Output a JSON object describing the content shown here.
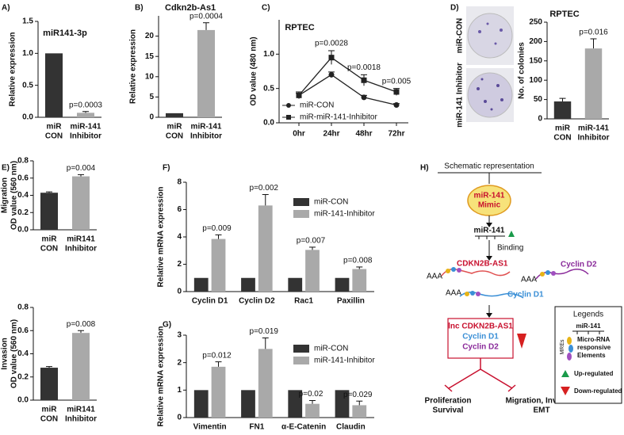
{
  "chart_data": [
    {
      "type": "bar",
      "panel_label": "A)",
      "title": "miR141-3p",
      "ylabel": "Relative expression",
      "categories": [
        [
          "miR",
          "CON"
        ],
        [
          "miR-141",
          "Inhibitor"
        ]
      ],
      "values": [
        1.0,
        0.07
      ],
      "errors": [
        0,
        0.02
      ],
      "colors": [
        "#333333",
        "#a9a9a9"
      ],
      "pvalues": [
        null,
        "p=0.0003"
      ],
      "ylim": [
        0,
        1.5
      ],
      "yticks": [
        {
          "value": 0,
          "label": "0.0"
        },
        {
          "value": 0.5,
          "label": "0.5"
        },
        {
          "value": 1.0,
          "label": "1.0"
        },
        {
          "value": 1.5,
          "label": "1.5"
        }
      ]
    },
    {
      "type": "bar",
      "panel_label": "B)",
      "title": "Cdkn2b-As1",
      "ylabel": "Relative expression",
      "categories": [
        [
          "miR",
          "CON"
        ],
        [
          "miR-141",
          "Inhibitor"
        ]
      ],
      "values": [
        1,
        21.5
      ],
      "errors": [
        0,
        1.8
      ],
      "colors": [
        "#333333",
        "#a9a9a9"
      ],
      "pvalues": [
        null,
        "p=0.0004"
      ],
      "ylim": [
        0,
        25
      ],
      "yticks": [
        0,
        5,
        10,
        15,
        20
      ]
    },
    {
      "type": "line",
      "panel_label": "C)",
      "title": "RPTEC",
      "ylabel": "OD value (480 nm)",
      "categories": [
        "0hr",
        "24hr",
        "48hr",
        "72hr"
      ],
      "series": [
        {
          "name": "miR-CON",
          "color": "#222222",
          "marker": "circle",
          "values": [
            0.4,
            0.7,
            0.37,
            0.26
          ],
          "errors": [
            0.03,
            0.04,
            0.03,
            0.02
          ]
        },
        {
          "name": "miR-miR-141-Inhibitor",
          "color": "#222222",
          "marker": "square",
          "values": [
            0.4,
            0.95,
            0.62,
            0.45
          ],
          "errors": [
            0.05,
            0.1,
            0.08,
            0.05
          ]
        }
      ],
      "pvalues": [
        null,
        "p=0.0028",
        "p=0.0018",
        "p=0.005"
      ],
      "ylim": [
        0,
        1.5
      ],
      "yticks": [
        {
          "value": 0,
          "label": "0.0"
        },
        {
          "value": 0.5,
          "label": "0.5"
        },
        {
          "value": 1.0,
          "label": "1.0"
        }
      ]
    },
    {
      "type": "bar",
      "panel_label": "D)",
      "title": "RPTEC",
      "ylabel": "No. of colonies",
      "image_labels": [
        "miR-CON",
        "miR-141 Inhibitor"
      ],
      "categories": [
        [
          "miR",
          "CON"
        ],
        [
          "miR-141",
          "Inhibitor"
        ]
      ],
      "values": [
        45,
        182
      ],
      "errors": [
        8,
        25
      ],
      "colors": [
        "#333333",
        "#a9a9a9"
      ],
      "pvalues": [
        null,
        "p=0.016"
      ],
      "ylim": [
        0,
        250
      ],
      "yticks": [
        0,
        50,
        100,
        150,
        200,
        250
      ]
    },
    {
      "type": "bar",
      "panel_label": "E)",
      "ylabel": [
        "Migration",
        "OD value (560 nm)"
      ],
      "categories": [
        [
          "miR",
          "CON"
        ],
        [
          "miR141",
          "Inhibitor"
        ]
      ],
      "values": [
        0.43,
        0.62
      ],
      "errors": [
        0.01,
        0.02
      ],
      "colors": [
        "#333333",
        "#a9a9a9"
      ],
      "pvalues": [
        null,
        "p=0.004"
      ],
      "ylim": [
        0,
        0.8
      ],
      "yticks": [
        {
          "value": 0,
          "label": "0.0"
        },
        {
          "value": 0.2,
          "label": "0.2"
        },
        {
          "value": 0.4,
          "label": "0.4"
        },
        {
          "value": 0.6,
          "label": "0.6"
        },
        {
          "value": 0.8,
          "label": "0.8"
        }
      ]
    },
    {
      "type": "bar",
      "ylabel": [
        "Invasion",
        "OD value (560 nm)"
      ],
      "categories": [
        [
          "miR",
          "CON"
        ],
        [
          "miR141",
          "Inhibitor"
        ]
      ],
      "values": [
        0.28,
        0.58
      ],
      "errors": [
        0.01,
        0.02
      ],
      "colors": [
        "#333333",
        "#a9a9a9"
      ],
      "pvalues": [
        null,
        "p=0.008"
      ],
      "ylim": [
        0,
        0.8
      ],
      "yticks": [
        {
          "value": 0,
          "label": "0.0"
        },
        {
          "value": 0.2,
          "label": "0.2"
        },
        {
          "value": 0.4,
          "label": "0.4"
        },
        {
          "value": 0.6,
          "label": "0.6"
        },
        {
          "value": 0.8,
          "label": "0.8"
        }
      ]
    },
    {
      "type": "grouped_bar",
      "panel_label": "F)",
      "ylabel": "Relative mRNA expression",
      "categories": [
        "Cyclin D1",
        "Cyclin D2",
        "Rac1",
        "Paxillin"
      ],
      "series": [
        {
          "name": "miR-CON",
          "color": "#333333",
          "values": [
            1,
            1,
            1,
            1
          ]
        },
        {
          "name": "miR-141-Inhibitor",
          "color": "#a9a9a9",
          "values": [
            3.85,
            6.3,
            3.05,
            1.65
          ],
          "errors": [
            0.3,
            0.8,
            0.2,
            0.15
          ]
        }
      ],
      "pvalues": [
        "p=0.009",
        "p=0.002",
        "p=0.007",
        "p=0.008"
      ],
      "ylim": [
        0,
        8
      ],
      "yticks": [
        0,
        2,
        4,
        6,
        8
      ]
    },
    {
      "type": "grouped_bar",
      "panel_label": "G)",
      "ylabel": "Relative mRNA expression",
      "categories": [
        "Vimentin",
        "FN1",
        "α-E-Catenin",
        "Claudin"
      ],
      "series": [
        {
          "name": "miR-CON",
          "color": "#333333",
          "values": [
            1,
            1,
            1,
            1
          ]
        },
        {
          "name": "miR-141-Inhibitor",
          "color": "#a9a9a9",
          "values": [
            1.85,
            2.5,
            0.5,
            0.45
          ],
          "errors": [
            0.18,
            0.4,
            0.12,
            0.15
          ]
        }
      ],
      "pvalues": [
        "p=0.012",
        "p=0.019",
        "p=0.02",
        "p=0.029"
      ],
      "ylim": [
        0,
        3
      ],
      "yticks": [
        0,
        1,
        2,
        3
      ]
    }
  ],
  "diagram": {
    "panel_label": "H)",
    "title": "Schematic representation",
    "mimic": [
      "miR-141",
      "Mimic"
    ],
    "mirna": "miR-141",
    "binding": "Binding",
    "poly_a": [
      "AAA",
      "AAA",
      "AAA"
    ],
    "targets": [
      "CDKN2B-AS1",
      "Cyclin D2",
      "Cyclin D1"
    ],
    "result": [
      "lnc CDKN2B-AS1",
      "Cyclin D1",
      "Cyclin D2"
    ],
    "outcomes": [
      [
        "Proliferation",
        "Survival"
      ],
      [
        "Migration, Invasion",
        "EMT"
      ]
    ],
    "legend": {
      "title": "Legends",
      "mirna": "miR-141",
      "mres": "MREs",
      "mre_text": [
        "Micro-RNA",
        "responsive",
        "Elements"
      ],
      "up": "Up-regulated",
      "down": "Down-regulated"
    }
  }
}
